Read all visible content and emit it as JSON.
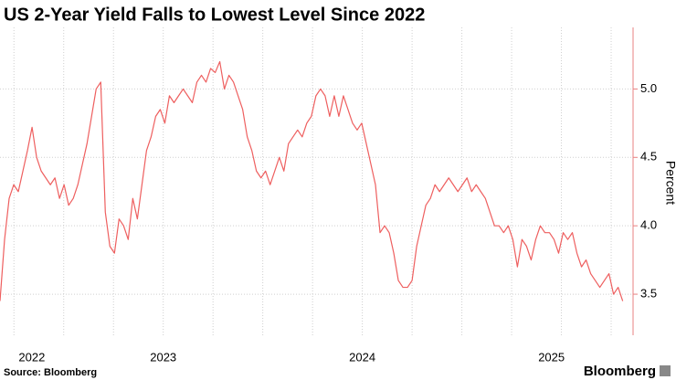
{
  "chart_data": {
    "type": "line",
    "title": "US 2-Year Yield Falls to Lowest Level Since 2022",
    "y_axis_label": "Percent",
    "source": "Source: Bloomberg",
    "logo": "Bloomberg",
    "color": "#ee5f5f",
    "axis_color": "#e88080",
    "grid": true,
    "xlim": [
      2022.68,
      2025.86
    ],
    "xticks": [
      2022.75,
      2023,
      2023.25,
      2023.5,
      2023.75,
      2024,
      2024.25,
      2024.5,
      2024.75,
      2025,
      2025.25,
      2025.5,
      2025.75
    ],
    "xlabels": [
      {
        "value": 2022.84,
        "label": "2022"
      },
      {
        "value": 2023.5,
        "label": "2023"
      },
      {
        "value": 2024.5,
        "label": "2024"
      },
      {
        "value": 2025.45,
        "label": "2025"
      }
    ],
    "ylim": [
      3.2,
      5.45
    ],
    "yticks": [
      3.5,
      {
        "value": 4,
        "label": "4.0"
      },
      4.5,
      {
        "value": 5,
        "label": "5.0"
      }
    ],
    "x": [
      2022.68,
      2022.703,
      2022.726,
      2022.749,
      2022.772,
      2022.795,
      2022.818,
      2022.841,
      2022.864,
      2022.887,
      2022.91,
      2022.933,
      2022.956,
      2022.979,
      2023.002,
      2023.025,
      2023.048,
      2023.071,
      2023.094,
      2023.117,
      2023.14,
      2023.163,
      2023.186,
      2023.209,
      2023.232,
      2023.255,
      2023.278,
      2023.301,
      2023.324,
      2023.347,
      2023.37,
      2023.393,
      2023.416,
      2023.439,
      2023.462,
      2023.485,
      2023.508,
      2023.531,
      2023.554,
      2023.577,
      2023.6,
      2023.623,
      2023.646,
      2023.669,
      2023.692,
      2023.715,
      2023.738,
      2023.761,
      2023.784,
      2023.807,
      2023.83,
      2023.853,
      2023.876,
      2023.899,
      2023.922,
      2023.945,
      2023.968,
      2023.991,
      2024.014,
      2024.037,
      2024.06,
      2024.083,
      2024.106,
      2024.129,
      2024.152,
      2024.175,
      2024.198,
      2024.221,
      2024.244,
      2024.267,
      2024.29,
      2024.313,
      2024.336,
      2024.359,
      2024.382,
      2024.405,
      2024.428,
      2024.451,
      2024.474,
      2024.497,
      2024.52,
      2024.543,
      2024.566,
      2024.589,
      2024.612,
      2024.635,
      2024.658,
      2024.681,
      2024.704,
      2024.727,
      2024.75,
      2024.773,
      2024.796,
      2024.819,
      2024.842,
      2024.865,
      2024.888,
      2024.911,
      2024.934,
      2024.957,
      2024.98,
      2025.003,
      2025.026,
      2025.049,
      2025.072,
      2025.095,
      2025.118,
      2025.141,
      2025.164,
      2025.187,
      2025.21,
      2025.233,
      2025.256,
      2025.279,
      2025.302,
      2025.325,
      2025.348,
      2025.371,
      2025.394,
      2025.417,
      2025.44,
      2025.463,
      2025.486,
      2025.509,
      2025.532,
      2025.555,
      2025.578,
      2025.601,
      2025.624,
      2025.647,
      2025.67,
      2025.693,
      2025.716,
      2025.739,
      2025.762,
      2025.785,
      2025.808
    ],
    "values": [
      3.45,
      3.9,
      4.2,
      4.3,
      4.25,
      4.4,
      4.55,
      4.72,
      4.5,
      4.4,
      4.35,
      4.3,
      4.35,
      4.2,
      4.3,
      4.15,
      4.2,
      4.3,
      4.45,
      4.6,
      4.8,
      5.0,
      5.05,
      4.1,
      3.85,
      3.8,
      4.05,
      4.0,
      3.9,
      4.2,
      4.05,
      4.3,
      4.55,
      4.65,
      4.8,
      4.85,
      4.75,
      4.95,
      4.9,
      4.95,
      5.0,
      4.95,
      4.9,
      5.05,
      5.1,
      5.05,
      5.15,
      5.12,
      5.2,
      5.0,
      5.1,
      5.05,
      4.95,
      4.85,
      4.65,
      4.55,
      4.4,
      4.35,
      4.4,
      4.3,
      4.4,
      4.5,
      4.4,
      4.6,
      4.65,
      4.7,
      4.65,
      4.75,
      4.8,
      4.95,
      5.0,
      4.95,
      4.8,
      4.95,
      4.8,
      4.95,
      4.85,
      4.75,
      4.7,
      4.75,
      4.6,
      4.45,
      4.3,
      3.95,
      4.0,
      3.95,
      3.8,
      3.6,
      3.55,
      3.55,
      3.6,
      3.85,
      4.0,
      4.15,
      4.2,
      4.3,
      4.25,
      4.3,
      4.35,
      4.3,
      4.25,
      4.3,
      4.35,
      4.25,
      4.3,
      4.25,
      4.2,
      4.1,
      4.0,
      4.0,
      3.95,
      4.0,
      3.9,
      3.7,
      3.9,
      3.85,
      3.75,
      3.9,
      4.0,
      3.95,
      3.95,
      3.9,
      3.8,
      3.95,
      3.9,
      3.95,
      3.8,
      3.7,
      3.75,
      3.65,
      3.6,
      3.55,
      3.6,
      3.65,
      3.5,
      3.55,
      3.45
    ]
  }
}
